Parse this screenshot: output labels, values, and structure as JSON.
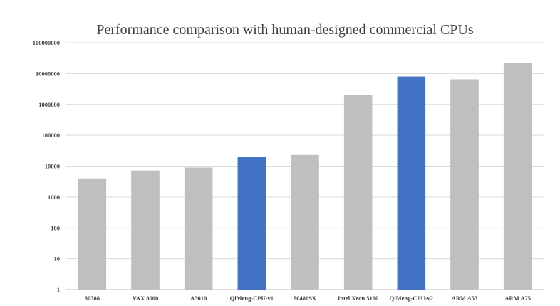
{
  "chart_data": {
    "type": "bar",
    "title": "Performance comparison with human-designed commercial CPUs",
    "xlabel": "",
    "ylabel": "",
    "y_scale": "log",
    "ylim": [
      1,
      100000000
    ],
    "y_ticks": [
      1,
      10,
      100,
      1000,
      10000,
      100000,
      1000000,
      10000000,
      100000000
    ],
    "y_tick_labels": [
      "1",
      "10",
      "100",
      "1000",
      "10000",
      "100000",
      "1000000",
      "10000000",
      "100000000"
    ],
    "grid": true,
    "legend": "none",
    "categories": [
      "80386",
      "VAX 8600",
      "A3010",
      "QiMeng-CPU-v1",
      "80486SX",
      "Intel Xeon 5160",
      "QiMeng-CPU-v2",
      "ARM A53",
      "ARM A75"
    ],
    "values": [
      4000,
      7200,
      9000,
      20000,
      23000,
      2000000,
      8000000,
      6500000,
      22000000
    ],
    "highlighted": [
      "QiMeng-CPU-v1",
      "QiMeng-CPU-v2"
    ],
    "colors": {
      "default_bar": "#bfbfbf",
      "highlight_bar": "#4472c4",
      "grid": "#d9d9d9",
      "text": "#404040"
    }
  }
}
